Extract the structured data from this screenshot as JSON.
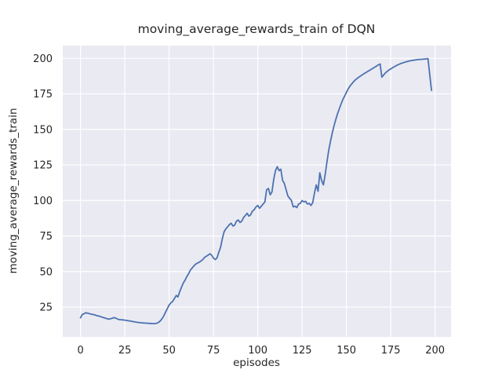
{
  "chart_data": {
    "type": "line",
    "title": "moving_average_rewards_train of DQN",
    "xlabel": "episodes",
    "ylabel": "moving_average_rewards_train",
    "x_ticks": [
      0,
      25,
      50,
      75,
      100,
      125,
      150,
      175,
      200
    ],
    "y_ticks": [
      25,
      50,
      75,
      100,
      125,
      150,
      175,
      200
    ],
    "xlim": [
      -10,
      209
    ],
    "ylim": [
      4,
      209
    ],
    "grid": true,
    "legend": false,
    "background": "#eaeaf2",
    "grid_color": "#ffffff",
    "line_color": "#4c72b0",
    "text_color": "#262626",
    "series": [
      {
        "name": "moving_average_rewards_train",
        "points": [
          [
            0,
            17.5
          ],
          [
            1,
            19.8
          ],
          [
            2,
            20.3
          ],
          [
            3,
            21.0
          ],
          [
            4,
            20.7
          ],
          [
            5,
            20.4
          ],
          [
            6,
            20.0
          ],
          [
            7,
            19.8
          ],
          [
            8,
            19.5
          ],
          [
            9,
            19.1
          ],
          [
            10,
            18.8
          ],
          [
            11,
            18.4
          ],
          [
            12,
            18.0
          ],
          [
            13,
            17.6
          ],
          [
            14,
            17.2
          ],
          [
            15,
            16.8
          ],
          [
            16,
            16.5
          ],
          [
            17,
            16.8
          ],
          [
            18,
            17.2
          ],
          [
            19,
            17.6
          ],
          [
            20,
            17.2
          ],
          [
            21,
            16.5
          ],
          [
            22,
            16.2
          ],
          [
            23,
            16.1
          ],
          [
            24,
            16.0
          ],
          [
            25,
            15.8
          ],
          [
            26,
            15.6
          ],
          [
            27,
            15.4
          ],
          [
            28,
            15.2
          ],
          [
            29,
            15.0
          ],
          [
            30,
            14.7
          ],
          [
            31,
            14.5
          ],
          [
            32,
            14.3
          ],
          [
            33,
            14.1
          ],
          [
            34,
            14.0
          ],
          [
            35,
            13.9
          ],
          [
            36,
            13.8
          ],
          [
            37,
            13.7
          ],
          [
            38,
            13.6
          ],
          [
            39,
            13.5
          ],
          [
            40,
            13.5
          ],
          [
            41,
            13.4
          ],
          [
            42,
            13.4
          ],
          [
            43,
            13.6
          ],
          [
            44,
            14.2
          ],
          [
            45,
            15.2
          ],
          [
            46,
            16.8
          ],
          [
            47,
            18.8
          ],
          [
            48,
            21.5
          ],
          [
            49,
            24.0
          ],
          [
            50,
            26.5
          ],
          [
            51,
            28.0
          ],
          [
            52,
            29.0
          ],
          [
            53,
            31.0
          ],
          [
            54,
            33.2
          ],
          [
            55,
            32.2
          ],
          [
            56,
            36.0
          ],
          [
            57,
            39.0
          ],
          [
            58,
            42.0
          ],
          [
            59,
            44.0
          ],
          [
            60,
            46.5
          ],
          [
            61,
            48.5
          ],
          [
            62,
            51.0
          ],
          [
            63,
            52.5
          ],
          [
            64,
            54.0
          ],
          [
            65,
            55.2
          ],
          [
            66,
            56.0
          ],
          [
            67,
            56.6
          ],
          [
            68,
            57.5
          ],
          [
            69,
            58.5
          ],
          [
            70,
            60.0
          ],
          [
            71,
            60.8
          ],
          [
            72,
            61.5
          ],
          [
            73,
            62.5
          ],
          [
            74,
            61.5
          ],
          [
            75,
            59.5
          ],
          [
            76,
            58.5
          ],
          [
            77,
            59.5
          ],
          [
            78,
            63.5
          ],
          [
            79,
            67.0
          ],
          [
            80,
            73.0
          ],
          [
            81,
            78.0
          ],
          [
            82,
            80.0
          ],
          [
            83,
            81.5
          ],
          [
            84,
            83.0
          ],
          [
            85,
            84.0
          ],
          [
            86,
            82.0
          ],
          [
            87,
            82.7
          ],
          [
            88,
            85.5
          ],
          [
            89,
            86.3
          ],
          [
            90,
            84.5
          ],
          [
            91,
            85.5
          ],
          [
            92,
            88.0
          ],
          [
            93,
            89.5
          ],
          [
            94,
            91.0
          ],
          [
            95,
            89.0
          ],
          [
            96,
            90.0
          ],
          [
            97,
            92.5
          ],
          [
            98,
            93.5
          ],
          [
            99,
            95.5
          ],
          [
            100,
            96.5
          ],
          [
            101,
            94.5
          ],
          [
            102,
            96.0
          ],
          [
            103,
            97.5
          ],
          [
            104,
            99.0
          ],
          [
            105,
            107.5
          ],
          [
            106,
            108.5
          ],
          [
            107,
            104.0
          ],
          [
            108,
            106.0
          ],
          [
            109,
            115.0
          ],
          [
            110,
            121.0
          ],
          [
            111,
            123.8
          ],
          [
            112,
            121.0
          ],
          [
            113,
            122.0
          ],
          [
            114,
            114.0
          ],
          [
            115,
            112.0
          ],
          [
            116,
            107.5
          ],
          [
            117,
            103.0
          ],
          [
            118,
            101.5
          ],
          [
            119,
            100.0
          ],
          [
            120,
            95.5
          ],
          [
            121,
            96.0
          ],
          [
            122,
            95.0
          ],
          [
            123,
            97.5
          ],
          [
            124,
            98.0
          ],
          [
            125,
            100.0
          ],
          [
            126,
            99.0
          ],
          [
            127,
            99.5
          ],
          [
            128,
            97.5
          ],
          [
            129,
            98.0
          ],
          [
            130,
            96.5
          ],
          [
            131,
            98.5
          ],
          [
            132,
            105.5
          ],
          [
            133,
            111.0
          ],
          [
            134,
            106.5
          ],
          [
            135,
            119.5
          ],
          [
            136,
            114.0
          ],
          [
            137,
            111.0
          ],
          [
            138,
            118.0
          ],
          [
            139,
            127.0
          ],
          [
            140,
            135.0
          ],
          [
            141,
            141.5
          ],
          [
            142,
            147.5
          ],
          [
            143,
            152.5
          ],
          [
            144,
            157.0
          ],
          [
            145,
            161.0
          ],
          [
            146,
            164.5
          ],
          [
            147,
            168.0
          ],
          [
            148,
            171.0
          ],
          [
            149,
            173.5
          ],
          [
            150,
            176.0
          ],
          [
            151,
            178.5
          ],
          [
            152,
            180.5
          ],
          [
            153,
            182.0
          ],
          [
            154,
            183.5
          ],
          [
            155,
            184.8
          ],
          [
            156,
            185.8
          ],
          [
            157,
            186.8
          ],
          [
            158,
            187.6
          ],
          [
            159,
            188.5
          ],
          [
            160,
            189.3
          ],
          [
            161,
            190.0
          ],
          [
            162,
            190.8
          ],
          [
            163,
            191.5
          ],
          [
            164,
            192.3
          ],
          [
            165,
            193.0
          ],
          [
            166,
            193.8
          ],
          [
            167,
            194.6
          ],
          [
            168,
            195.4
          ],
          [
            169,
            196.0
          ],
          [
            170,
            186.8
          ],
          [
            171,
            188.3
          ],
          [
            172,
            189.8
          ],
          [
            173,
            190.8
          ],
          [
            174,
            191.8
          ],
          [
            175,
            192.6
          ],
          [
            176,
            193.4
          ],
          [
            177,
            194.1
          ],
          [
            178,
            194.8
          ],
          [
            179,
            195.4
          ],
          [
            180,
            196.0
          ],
          [
            181,
            196.5
          ],
          [
            182,
            196.9
          ],
          [
            183,
            197.3
          ],
          [
            184,
            197.7
          ],
          [
            185,
            198.0
          ],
          [
            186,
            198.3
          ],
          [
            187,
            198.5
          ],
          [
            188,
            198.7
          ],
          [
            189,
            198.9
          ],
          [
            190,
            199.1
          ],
          [
            191,
            199.2
          ],
          [
            192,
            199.3
          ],
          [
            193,
            199.4
          ],
          [
            194,
            199.5
          ],
          [
            195,
            199.6
          ],
          [
            196,
            199.8
          ],
          [
            198,
            177.5
          ]
        ]
      }
    ]
  }
}
